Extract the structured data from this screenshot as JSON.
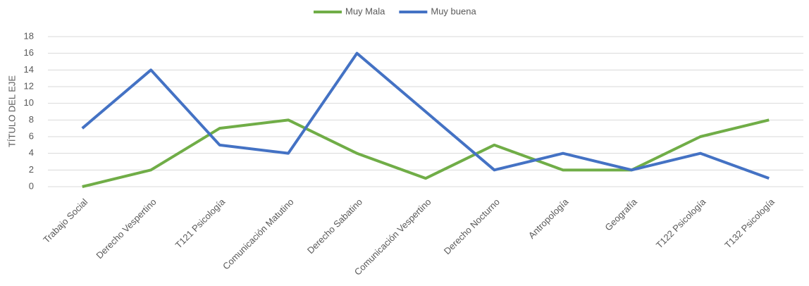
{
  "chart_data": {
    "type": "line",
    "categories": [
      "Trabajo Social",
      "Derecho Vespertino",
      "T121 Psicología",
      "Comunicación Matutino",
      "Derecho Sabatino",
      "Comunicación Vespertino",
      "Derecho Nocturno",
      "Antropología",
      "Geografía",
      "T122 Psicología",
      "T132 Psicología"
    ],
    "series": [
      {
        "name": "Muy Mala",
        "color": "#70ad47",
        "values": [
          0,
          2,
          7,
          8,
          4,
          1,
          5,
          2,
          2,
          6,
          8
        ]
      },
      {
        "name": "Muy buena",
        "color": "#4472c4",
        "values": [
          7,
          14,
          5,
          4,
          16,
          9,
          2,
          4,
          2,
          4,
          1
        ]
      }
    ],
    "y_label": "TÍTULO DEL EJE",
    "ylim": [
      0,
      18
    ],
    "yticks": [
      0,
      2,
      4,
      6,
      8,
      10,
      12,
      14,
      16,
      18
    ],
    "grid": true,
    "legend": "top"
  }
}
